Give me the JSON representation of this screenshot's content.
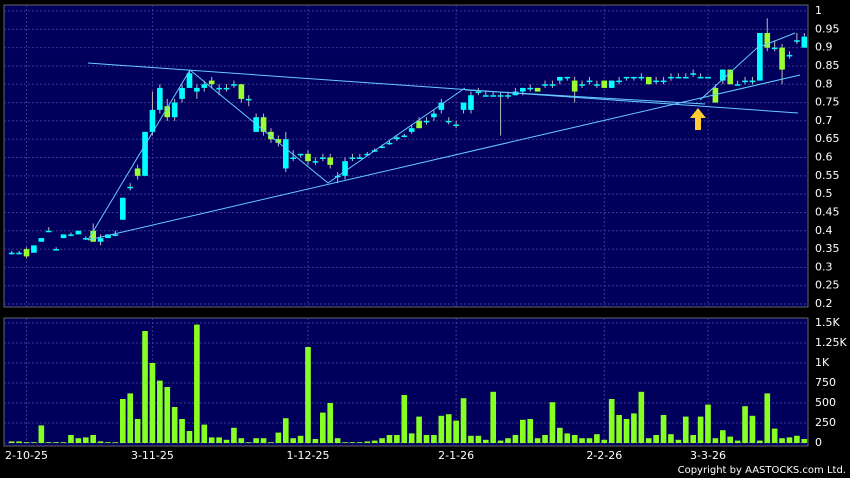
{
  "chart_data": [
    {
      "type": "candlestick",
      "categories": [
        null,
        null,
        "2-10-25",
        null,
        null,
        null,
        null,
        null,
        null,
        null,
        null,
        null,
        null,
        null,
        null,
        null,
        null,
        null,
        null,
        "3-11-25",
        null,
        null,
        null,
        null,
        null,
        null,
        null,
        null,
        null,
        null,
        null,
        null,
        null,
        null,
        null,
        null,
        null,
        null,
        null,
        null,
        "1-12-25",
        null,
        null,
        null,
        null,
        null,
        null,
        null,
        null,
        null,
        null,
        null,
        null,
        null,
        null,
        null,
        null,
        null,
        null,
        null,
        "2-1-26",
        null,
        null,
        null,
        null,
        null,
        null,
        null,
        null,
        null,
        null,
        null,
        null,
        null,
        null,
        null,
        null,
        null,
        null,
        null,
        "2-2-26",
        null,
        null,
        null,
        null,
        null,
        null,
        null,
        null,
        null,
        null,
        null,
        null,
        null,
        "3-3-26",
        null,
        null,
        null,
        null,
        null,
        null,
        null,
        null,
        null,
        null,
        null,
        null,
        null
      ],
      "ohlc": [
        [
          0.34,
          0.345,
          0.335,
          0.34
        ],
        [
          0.34,
          0.345,
          0.335,
          0.34
        ],
        [
          0.35,
          0.355,
          0.325,
          0.33
        ],
        [
          0.34,
          0.36,
          0.34,
          0.36
        ],
        [
          0.37,
          0.38,
          0.37,
          0.38
        ],
        [
          0.4,
          0.41,
          0.4,
          0.4
        ],
        [
          0.35,
          0.355,
          0.35,
          0.35
        ],
        [
          0.38,
          0.39,
          0.38,
          0.39
        ],
        [
          0.39,
          0.395,
          0.385,
          0.39
        ],
        [
          0.39,
          0.4,
          0.39,
          0.4
        ],
        [
          0.38,
          0.385,
          0.375,
          0.38
        ],
        [
          0.4,
          0.42,
          0.37,
          0.37
        ],
        [
          0.37,
          0.39,
          0.36,
          0.38
        ],
        [
          0.38,
          0.39,
          0.38,
          0.39
        ],
        [
          0.39,
          0.4,
          0.385,
          0.39
        ],
        [
          0.43,
          0.49,
          0.43,
          0.49
        ],
        [
          0.52,
          0.53,
          0.51,
          0.52
        ],
        [
          0.57,
          0.58,
          0.54,
          0.55
        ],
        [
          0.55,
          0.67,
          0.55,
          0.67
        ],
        [
          0.67,
          0.78,
          0.66,
          0.73
        ],
        [
          0.73,
          0.8,
          0.72,
          0.79
        ],
        [
          0.74,
          0.76,
          0.7,
          0.71
        ],
        [
          0.71,
          0.76,
          0.7,
          0.75
        ],
        [
          0.76,
          0.8,
          0.75,
          0.79
        ],
        [
          0.79,
          0.84,
          0.79,
          0.83
        ],
        [
          0.78,
          0.8,
          0.76,
          0.79
        ],
        [
          0.79,
          0.81,
          0.78,
          0.8
        ],
        [
          0.81,
          0.82,
          0.79,
          0.8
        ],
        [
          0.79,
          0.8,
          0.77,
          0.79
        ],
        [
          0.79,
          0.8,
          0.78,
          0.79
        ],
        [
          0.8,
          0.81,
          0.79,
          0.8
        ],
        [
          0.8,
          0.8,
          0.75,
          0.76
        ],
        [
          0.76,
          0.77,
          0.74,
          0.76
        ],
        [
          0.67,
          0.72,
          0.67,
          0.71
        ],
        [
          0.71,
          0.72,
          0.66,
          0.67
        ],
        [
          0.67,
          0.68,
          0.64,
          0.65
        ],
        [
          0.65,
          0.66,
          0.63,
          0.64
        ],
        [
          0.57,
          0.67,
          0.56,
          0.65
        ],
        [
          0.6,
          0.62,
          0.59,
          0.6
        ],
        [
          0.61,
          0.61,
          0.6,
          0.61
        ],
        [
          0.61,
          0.62,
          0.58,
          0.59
        ],
        [
          0.59,
          0.6,
          0.58,
          0.59
        ],
        [
          0.6,
          0.61,
          0.59,
          0.6
        ],
        [
          0.6,
          0.61,
          0.57,
          0.58
        ],
        [
          0.55,
          0.56,
          0.53,
          0.55
        ],
        [
          0.55,
          0.6,
          0.54,
          0.59
        ],
        [
          0.6,
          0.61,
          0.59,
          0.6
        ],
        [
          0.6,
          0.61,
          0.6,
          0.6
        ],
        [
          0.61,
          0.615,
          0.605,
          0.61
        ],
        [
          0.62,
          0.625,
          0.615,
          0.62
        ],
        [
          0.63,
          0.635,
          0.625,
          0.63
        ],
        [
          0.64,
          0.645,
          0.635,
          0.64
        ],
        [
          0.65,
          0.66,
          0.645,
          0.655
        ],
        [
          0.66,
          0.665,
          0.655,
          0.66
        ],
        [
          0.67,
          0.69,
          0.665,
          0.68
        ],
        [
          0.7,
          0.71,
          0.68,
          0.68
        ],
        [
          0.7,
          0.71,
          0.69,
          0.7
        ],
        [
          0.71,
          0.73,
          0.7,
          0.72
        ],
        [
          0.73,
          0.76,
          0.72,
          0.75
        ],
        [
          0.7,
          0.71,
          0.69,
          0.7
        ],
        [
          0.69,
          0.7,
          0.68,
          0.69
        ],
        [
          0.73,
          0.75,
          0.72,
          0.75
        ],
        [
          0.73,
          0.78,
          0.72,
          0.77
        ],
        [
          0.78,
          0.79,
          0.77,
          0.78
        ],
        [
          0.77,
          0.78,
          0.77,
          0.77
        ],
        [
          0.77,
          0.78,
          0.77,
          0.77
        ],
        [
          0.77,
          0.78,
          0.66,
          0.77
        ],
        [
          0.77,
          0.78,
          0.76,
          0.77
        ],
        [
          0.77,
          0.79,
          0.77,
          0.78
        ],
        [
          0.78,
          0.79,
          0.77,
          0.79
        ],
        [
          0.79,
          0.8,
          0.78,
          0.79
        ],
        [
          0.79,
          0.79,
          0.78,
          0.78
        ],
        [
          0.8,
          0.81,
          0.79,
          0.8
        ],
        [
          0.8,
          0.81,
          0.79,
          0.8
        ],
        [
          0.81,
          0.82,
          0.8,
          0.82
        ],
        [
          0.82,
          0.82,
          0.81,
          0.82
        ],
        [
          0.81,
          0.82,
          0.75,
          0.78
        ],
        [
          0.8,
          0.81,
          0.79,
          0.8
        ],
        [
          0.81,
          0.82,
          0.8,
          0.81
        ],
        [
          0.8,
          0.81,
          0.79,
          0.8
        ],
        [
          0.81,
          0.81,
          0.79,
          0.79
        ],
        [
          0.79,
          0.81,
          0.79,
          0.81
        ],
        [
          0.81,
          0.82,
          0.8,
          0.81
        ],
        [
          0.82,
          0.82,
          0.81,
          0.82
        ],
        [
          0.82,
          0.82,
          0.81,
          0.82
        ],
        [
          0.82,
          0.83,
          0.81,
          0.82
        ],
        [
          0.82,
          0.82,
          0.8,
          0.8
        ],
        [
          0.81,
          0.82,
          0.8,
          0.81
        ],
        [
          0.81,
          0.82,
          0.8,
          0.81
        ],
        [
          0.82,
          0.83,
          0.81,
          0.82
        ],
        [
          0.82,
          0.83,
          0.82,
          0.82
        ],
        [
          0.82,
          0.83,
          0.82,
          0.82
        ],
        [
          0.83,
          0.84,
          0.82,
          0.83
        ],
        [
          0.82,
          0.83,
          0.82,
          0.82
        ],
        [
          0.82,
          0.82,
          0.82,
          0.82
        ],
        [
          0.79,
          0.8,
          0.75,
          0.75
        ],
        [
          0.81,
          0.84,
          0.8,
          0.84
        ],
        [
          0.84,
          0.84,
          0.8,
          0.8
        ],
        [
          0.8,
          0.81,
          0.8,
          0.8
        ],
        [
          0.81,
          0.82,
          0.8,
          0.81
        ],
        [
          0.81,
          0.82,
          0.8,
          0.81
        ],
        [
          0.81,
          0.94,
          0.81,
          0.94
        ],
        [
          0.94,
          0.98,
          0.89,
          0.9
        ],
        [
          0.9,
          0.92,
          0.89,
          0.9
        ],
        [
          0.9,
          0.91,
          0.8,
          0.84
        ],
        [
          0.88,
          0.89,
          0.87,
          0.88
        ],
        [
          0.92,
          0.94,
          0.91,
          0.92
        ],
        [
          0.9,
          0.94,
          0.9,
          0.93
        ]
      ],
      "up_color": "#00ffff",
      "down_color": "#99ff33",
      "ylim": [
        0.2,
        1
      ],
      "yticks": [
        0.2,
        0.25,
        0.3,
        0.35,
        0.4,
        0.45,
        0.5,
        0.55,
        0.6,
        0.65,
        0.7,
        0.75,
        0.8,
        0.85,
        0.9,
        0.95,
        1
      ],
      "grid": true
    },
    {
      "type": "bar",
      "values": [
        20,
        20,
        10,
        10,
        220,
        10,
        10,
        10,
        100,
        60,
        70,
        100,
        20,
        10,
        10,
        550,
        620,
        300,
        1400,
        1000,
        780,
        700,
        450,
        300,
        150,
        1480,
        230,
        70,
        70,
        40,
        190,
        60,
        10,
        60,
        60,
        10,
        130,
        310,
        60,
        90,
        1200,
        50,
        380,
        500,
        60,
        10,
        10,
        10,
        20,
        30,
        60,
        100,
        100,
        600,
        120,
        330,
        100,
        100,
        340,
        360,
        280,
        560,
        90,
        90,
        40,
        640,
        30,
        60,
        100,
        290,
        300,
        60,
        100,
        510,
        190,
        120,
        100,
        60,
        60,
        110,
        40,
        550,
        350,
        300,
        370,
        640,
        60,
        100,
        350,
        110,
        40,
        330,
        100,
        330,
        480,
        60,
        160,
        80,
        30,
        460,
        340,
        30,
        620,
        180,
        60,
        70,
        90,
        50
      ],
      "color": "#88ff22",
      "ylim": [
        0,
        1500
      ],
      "yticks": [
        0,
        250,
        500,
        750,
        {
          "value": 1000,
          "label": "1K"
        },
        {
          "value": 1250,
          "label": "1.25K"
        },
        {
          "value": 1500,
          "label": "1.5K"
        }
      ],
      "grid": true,
      "annotation": "Copyright by AASTOCKS.com Ltd."
    }
  ]
}
